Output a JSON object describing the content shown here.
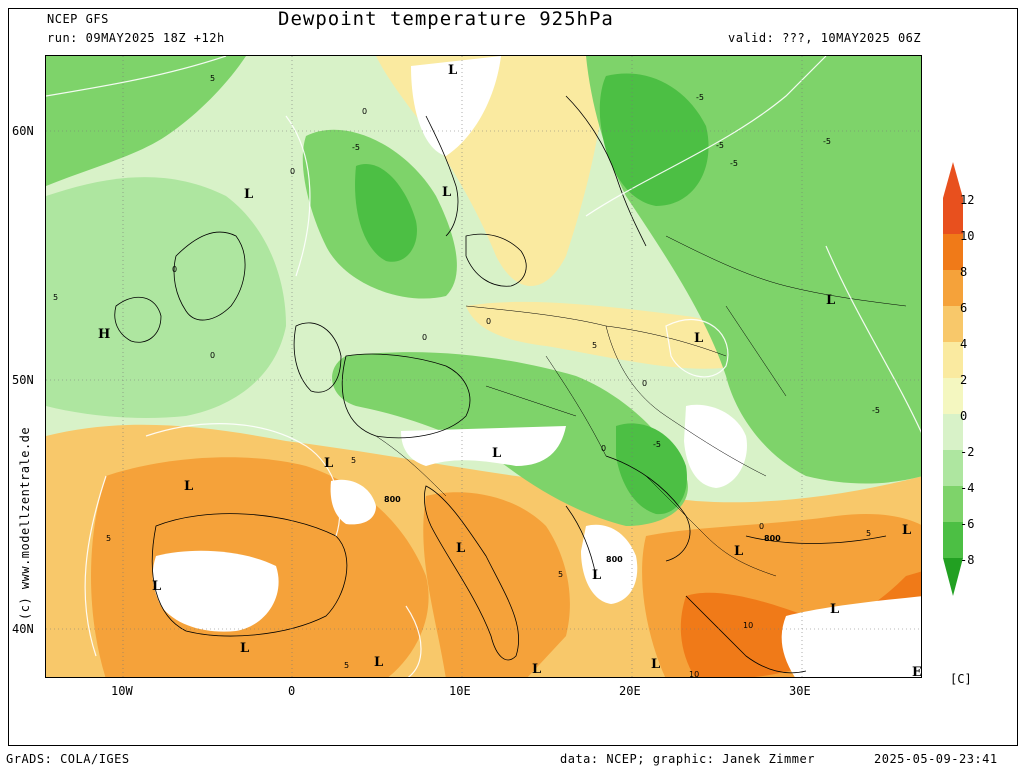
{
  "header": {
    "model": "NCEP GFS",
    "run": "run: 09MAY2025 18Z +12h",
    "title": "Dewpoint temperature 925hPa",
    "valid": "valid: ???, 10MAY2025 06Z"
  },
  "axes": {
    "lat_labels": [
      "60N",
      "50N",
      "40N"
    ],
    "lon_labels": [
      "10W",
      "0",
      "10E",
      "20E",
      "30E"
    ]
  },
  "side_credit": "(c) www.modellzentrale.de",
  "colorbar": {
    "labels": [
      "12",
      "10",
      "8",
      "6",
      "4",
      "2",
      "0",
      "-2",
      "-4",
      "-6",
      "-8"
    ],
    "unit": "[C]",
    "colors": {
      "c12": "#e8501e",
      "c10": "#f07a18",
      "c8": "#f5a23a",
      "c6": "#f8c86a",
      "c4": "#faeaa0",
      "c2": "#f4f7c0",
      "c0": "#d8f2c8",
      "cm2": "#aee6a0",
      "cm4": "#7ed36a",
      "cm6": "#4cbf44",
      "cm8": "#22a022"
    }
  },
  "map_labels": {
    "L": "L",
    "H": "H",
    "E": "E",
    "c800": "800",
    "c10": "10",
    "c5": "5",
    "c0": "0",
    "cm5": "-5"
  },
  "footer": {
    "left": "GrADS: COLA/IGES",
    "center": "data: NCEP; graphic: Janek Zimmer",
    "right": "2025-05-09-23:41"
  }
}
